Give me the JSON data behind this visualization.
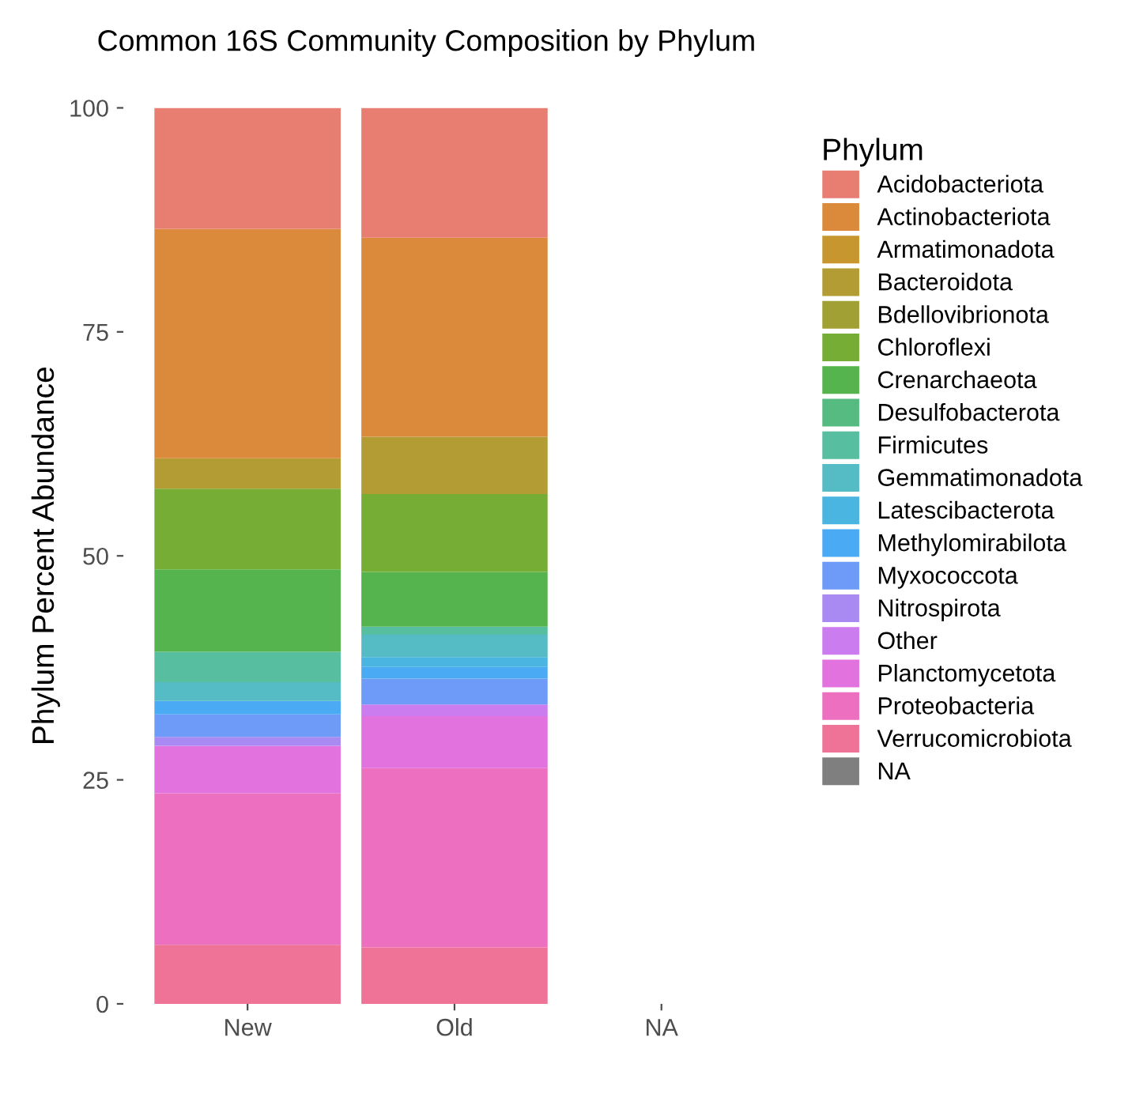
{
  "chart_data": {
    "type": "bar",
    "title": "Common 16S Community Composition by Phylum",
    "ylabel": "Phylum Percent Abundance",
    "legend_title": "Phylum",
    "categories": [
      "New",
      "Old",
      "NA"
    ],
    "stacked": true,
    "ylim": [
      0,
      100
    ],
    "yticks": [
      0,
      25,
      50,
      75,
      100
    ],
    "grid": false,
    "legend": "right",
    "series": [
      {
        "name": "NA",
        "color": "#7f7f7f",
        "values": [
          0,
          0,
          null
        ]
      },
      {
        "name": "Verrucomicrobiota",
        "color": "#ee7397",
        "values": [
          6.6,
          6.3,
          null
        ]
      },
      {
        "name": "Proteobacteria",
        "color": "#ec6fc0",
        "values": [
          16.9,
          20.0,
          null
        ]
      },
      {
        "name": "Planctomycetota",
        "color": "#e272de",
        "values": [
          5.3,
          5.8,
          null
        ]
      },
      {
        "name": "Other",
        "color": "#cb7df0",
        "values": [
          0,
          1.3,
          null
        ]
      },
      {
        "name": "Nitrospirota",
        "color": "#a98af3",
        "values": [
          1.0,
          0,
          null
        ]
      },
      {
        "name": "Myxococcota",
        "color": "#6e9bf8",
        "values": [
          2.5,
          2.9,
          null
        ]
      },
      {
        "name": "Methylomirabilota",
        "color": "#4aaaf3",
        "values": [
          1.5,
          1.3,
          null
        ]
      },
      {
        "name": "Latescibacterota",
        "color": "#4ab5e0",
        "values": [
          0,
          1.1,
          null
        ]
      },
      {
        "name": "Gemmatimonadota",
        "color": "#55bbc4",
        "values": [
          2.1,
          2.5,
          null
        ]
      },
      {
        "name": "Firmicutes",
        "color": "#57be9f",
        "values": [
          3.4,
          0.9,
          null
        ]
      },
      {
        "name": "Desulfobacterota",
        "color": "#55bb80",
        "values": [
          0,
          0,
          null
        ]
      },
      {
        "name": "Crenarchaeota",
        "color": "#55b44d",
        "values": [
          9.2,
          6.1,
          null
        ]
      },
      {
        "name": "Chloroflexi",
        "color": "#76ae35",
        "values": [
          9.0,
          8.7,
          null
        ]
      },
      {
        "name": "Bdellovibrionota",
        "color": "#a0a035",
        "values": [
          0,
          0,
          null
        ]
      },
      {
        "name": "Bacteroidota",
        "color": "#b39c33",
        "values": [
          3.4,
          6.4,
          null
        ]
      },
      {
        "name": "Armatimonadota",
        "color": "#c8962e",
        "values": [
          0,
          0,
          null
        ]
      },
      {
        "name": "Actinobacteriota",
        "color": "#db8a3b",
        "values": [
          25.6,
          22.2,
          null
        ]
      },
      {
        "name": "Acidobacteriota",
        "color": "#e87d72",
        "values": [
          13.5,
          14.5,
          null
        ]
      }
    ]
  }
}
